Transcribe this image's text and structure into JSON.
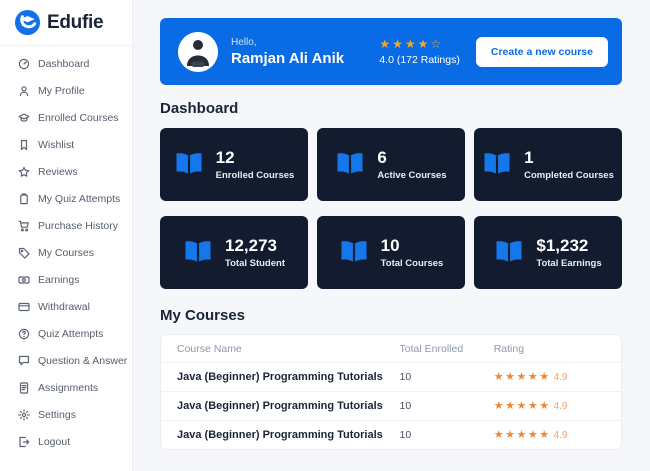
{
  "app": {
    "name": "Edufie"
  },
  "colors": {
    "brand_blue": "#0a6ce4",
    "card_navy": "#131b2e",
    "banner_star_orange": "#f6a623",
    "table_star_orange": "#ed8936",
    "heading_navy": "#1b2437"
  },
  "sidebar": {
    "items": [
      {
        "label": "Dashboard",
        "icon": "dashboard-icon"
      },
      {
        "label": "My Profile",
        "icon": "user-icon"
      },
      {
        "label": "Enrolled Courses",
        "icon": "graduation-cap-icon"
      },
      {
        "label": "Wishlist",
        "icon": "bookmark-icon"
      },
      {
        "label": "Reviews",
        "icon": "star-icon"
      },
      {
        "label": "My Quiz Attempts",
        "icon": "clipboard-icon"
      },
      {
        "label": "Purchase History",
        "icon": "cart-icon"
      },
      {
        "label": "My Courses",
        "icon": "tag-icon"
      },
      {
        "label": "Earnings",
        "icon": "banknote-icon"
      },
      {
        "label": "Withdrawal",
        "icon": "credit-card-icon"
      },
      {
        "label": "Quiz Attempts",
        "icon": "question-circle-icon"
      },
      {
        "label": "Question & Answer",
        "icon": "chat-bubble-icon"
      },
      {
        "label": "Assignments",
        "icon": "file-icon"
      },
      {
        "label": "Settings",
        "icon": "gear-icon"
      },
      {
        "label": "Logout",
        "icon": "logout-icon"
      }
    ]
  },
  "banner": {
    "greeting": "Hello,",
    "user_name": "Ramjan Ali Anik",
    "rating": {
      "filled": 4,
      "total": 5
    },
    "rating_text": "4.0 (172 Ratings)",
    "button_label": "Create a new course"
  },
  "dashboard": {
    "title": "Dashboard",
    "cards": [
      {
        "value": "12",
        "label": "Enrolled Courses"
      },
      {
        "value": "6",
        "label": "Active Courses"
      },
      {
        "value": "1",
        "label": "Completed Courses"
      },
      {
        "value": "12,273",
        "label": "Total Student"
      },
      {
        "value": "10",
        "label": "Total Courses"
      },
      {
        "value": "$1,232",
        "label": "Total Earnings"
      }
    ]
  },
  "courses": {
    "title": "My Courses",
    "columns": [
      "Course Name",
      "Total Enrolled",
      "Rating"
    ],
    "rows": [
      {
        "name": "Java (Beginner) Programming Tutorials",
        "enrolled": "10",
        "rating_text": "4.9",
        "rating": {
          "filled": 5,
          "total": 5
        }
      },
      {
        "name": "Java (Beginner) Programming Tutorials",
        "enrolled": "10",
        "rating_text": "4.9",
        "rating": {
          "filled": 5,
          "total": 5
        }
      },
      {
        "name": "Java (Beginner) Programming Tutorials",
        "enrolled": "10",
        "rating_text": "4.9",
        "rating": {
          "filled": 5,
          "total": 5
        }
      }
    ]
  }
}
